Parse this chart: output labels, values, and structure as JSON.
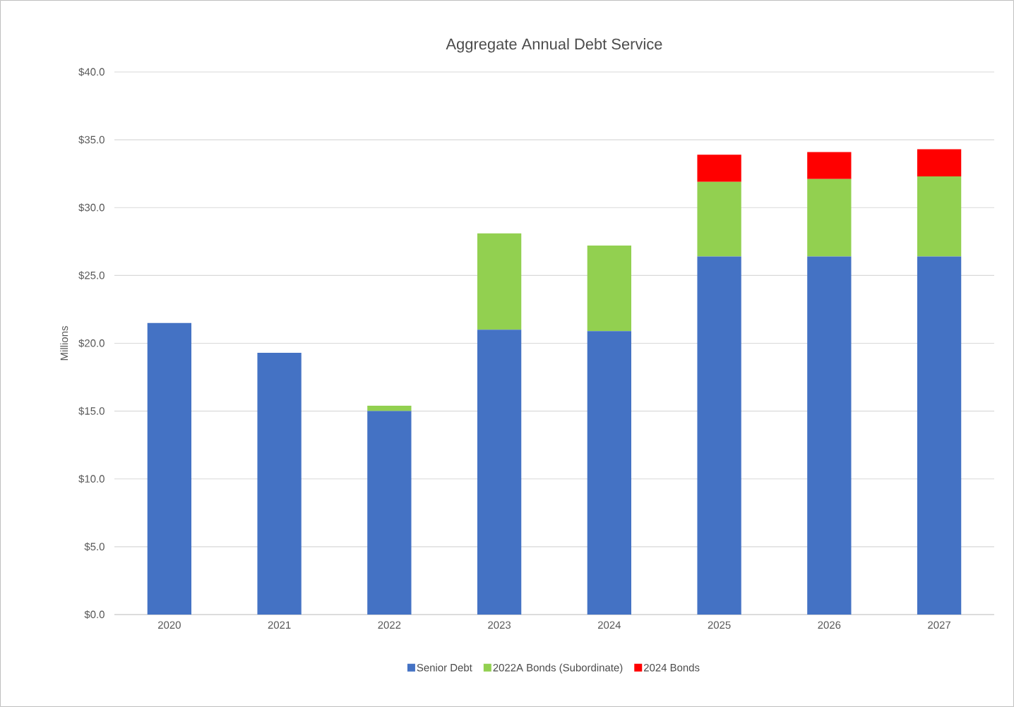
{
  "chart_data": {
    "type": "bar",
    "title": "Aggregate Annual Debt Service",
    "ylabel": "Millions",
    "categories": [
      "2020",
      "2021",
      "2022",
      "2023",
      "2024",
      "2025",
      "2026",
      "2027"
    ],
    "stacked": true,
    "series": [
      {
        "name": "Senior Debt",
        "color": "#4472c4",
        "values": [
          21.5,
          19.3,
          15.0,
          21.0,
          20.9,
          26.4,
          26.4,
          26.4
        ]
      },
      {
        "name": "2022A Bonds (Subordinate)",
        "color": "#92d050",
        "values": [
          null,
          null,
          0.4,
          7.1,
          6.3,
          5.5,
          5.7,
          5.9
        ]
      },
      {
        "name": "2024 Bonds",
        "color": "#ff0000",
        "values": [
          null,
          null,
          null,
          null,
          null,
          2.0,
          2.0,
          2.0
        ]
      }
    ],
    "ylim": [
      0,
      40
    ],
    "yticks": [
      {
        "value": 0,
        "label": "$0.0"
      },
      {
        "value": 5,
        "label": "$5.0"
      },
      {
        "value": 10,
        "label": "$10.0"
      },
      {
        "value": 15,
        "label": "$15.0"
      },
      {
        "value": 20,
        "label": "$20.0"
      },
      {
        "value": 25,
        "label": "$25.0"
      },
      {
        "value": 30,
        "label": "$30.0"
      },
      {
        "value": 35,
        "label": "$35.0"
      },
      {
        "value": 40,
        "label": "$40.0"
      }
    ],
    "grid": "y",
    "legend": "bottom"
  }
}
